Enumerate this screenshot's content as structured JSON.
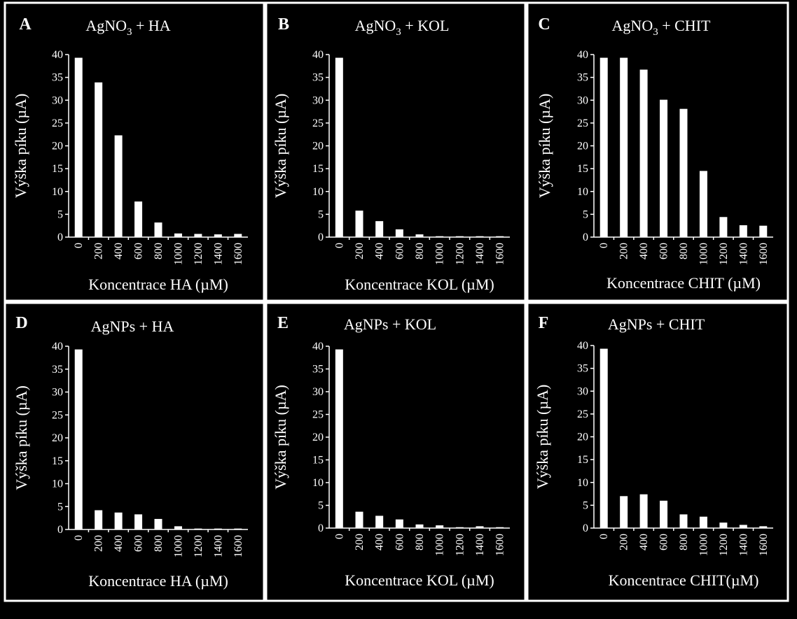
{
  "colors": {
    "background": "#000000",
    "foreground": "#ffffff"
  },
  "chart_data": [
    {
      "id": "A",
      "type": "bar",
      "label": "A",
      "title": {
        "main": "AgNO",
        "sub": "3",
        "rest": " + HA"
      },
      "xlabel": "Koncentrace HA (µM)",
      "ylabel": "Výška píku (µA)",
      "categories": [
        "0",
        "200",
        "400",
        "600",
        "800",
        "1000",
        "1200",
        "1400",
        "1600"
      ],
      "values": [
        39.3,
        33.9,
        22.3,
        7.8,
        3.2,
        0.8,
        0.7,
        0.6,
        0.7
      ],
      "ylim": [
        0,
        40
      ],
      "yticks": [
        0,
        5,
        10,
        15,
        20,
        25,
        30,
        35,
        40
      ]
    },
    {
      "id": "B",
      "type": "bar",
      "label": "B",
      "title": {
        "main": "AgNO",
        "sub": "3",
        "rest": " + KOL"
      },
      "xlabel": "Koncentrace KOL (µM)",
      "ylabel": "Výška píku (µA)",
      "categories": [
        "0",
        "200",
        "400",
        "600",
        "800",
        "1000",
        "1200",
        "1400",
        "1600"
      ],
      "values": [
        39.3,
        5.8,
        3.5,
        1.7,
        0.6,
        0.2,
        0.2,
        0.2,
        0.2
      ],
      "ylim": [
        0,
        40
      ],
      "yticks": [
        0,
        5,
        10,
        15,
        20,
        25,
        30,
        35,
        40
      ]
    },
    {
      "id": "C",
      "type": "bar",
      "label": "C",
      "title": {
        "main": "AgNO",
        "sub": "3",
        "rest": " + CHIT"
      },
      "xlabel": "Koncentrace CHIT (µM)",
      "ylabel": "Výška píku (µA)",
      "categories": [
        "0",
        "200",
        "400",
        "600",
        "800",
        "1000",
        "1200",
        "1400",
        "1600"
      ],
      "values": [
        39.3,
        39.3,
        36.7,
        30.1,
        28.1,
        14.5,
        4.4,
        2.6,
        2.5
      ],
      "ylim": [
        0,
        40
      ],
      "yticks": [
        0,
        5,
        10,
        15,
        20,
        25,
        30,
        35,
        40
      ]
    },
    {
      "id": "D",
      "type": "bar",
      "label": "D",
      "title": {
        "main": "AgNPs + HA",
        "sub": "",
        "rest": ""
      },
      "xlabel": "Koncentrace HA (µM)",
      "ylabel": "Výška píku (µA)",
      "categories": [
        "0",
        "200",
        "400",
        "600",
        "800",
        "1000",
        "1200",
        "1400",
        "1600"
      ],
      "values": [
        39.3,
        4.2,
        3.7,
        3.3,
        2.3,
        0.7,
        0.2,
        0.2,
        0.2
      ],
      "ylim": [
        0,
        40
      ],
      "yticks": [
        0,
        5,
        10,
        15,
        20,
        25,
        30,
        35,
        40
      ]
    },
    {
      "id": "E",
      "type": "bar",
      "label": "E",
      "title": {
        "main": "AgNPs + KOL",
        "sub": "",
        "rest": ""
      },
      "xlabel": "Koncentrace KOL (µM)",
      "ylabel": "Výška píku (µA)",
      "categories": [
        "0",
        "200",
        "400",
        "600",
        "800",
        "1000",
        "1200",
        "1400",
        "1600"
      ],
      "values": [
        39.3,
        3.6,
        2.7,
        1.9,
        0.8,
        0.6,
        0.2,
        0.4,
        0.2
      ],
      "ylim": [
        0,
        40
      ],
      "yticks": [
        0,
        5,
        10,
        15,
        20,
        25,
        30,
        35,
        40
      ]
    },
    {
      "id": "F",
      "type": "bar",
      "label": "F",
      "title": {
        "main": "AgNPs + CHIT",
        "sub": "",
        "rest": ""
      },
      "xlabel": "Koncentrace CHIT(µM)",
      "ylabel": "Výška píku (µA)",
      "categories": [
        "0",
        "200",
        "400",
        "600",
        "800",
        "1000",
        "1200",
        "1400",
        "1600"
      ],
      "values": [
        39.3,
        7.0,
        7.4,
        6.0,
        3.0,
        2.5,
        1.2,
        0.7,
        0.4
      ],
      "ylim": [
        0,
        40
      ],
      "yticks": [
        0,
        5,
        10,
        15,
        20,
        25,
        30,
        35,
        40
      ]
    }
  ]
}
